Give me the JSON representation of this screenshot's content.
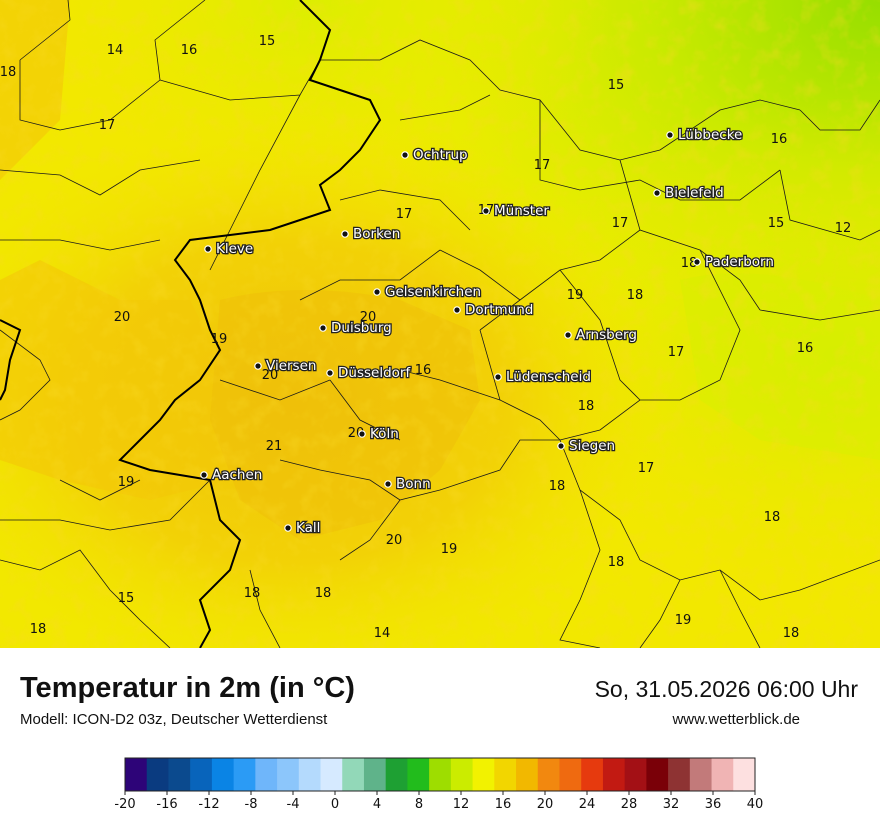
{
  "header": {
    "title": "Temperatur in 2m (in °C)",
    "model": "Modell: ICON-D2 03z, Deutscher Wetterdienst",
    "datetime": "So, 31.05.2026 06:00 Uhr",
    "website": "www.wetterblick.de"
  },
  "cities": [
    {
      "name": "Lübbecke"
    },
    {
      "name": "Ochtrup"
    },
    {
      "name": "Bielefeld"
    },
    {
      "name": "Münster"
    },
    {
      "name": "Borken"
    },
    {
      "name": "Kleve"
    },
    {
      "name": "Paderborn"
    },
    {
      "name": "Gelsenkirchen"
    },
    {
      "name": "Dortmund"
    },
    {
      "name": "Duisburg"
    },
    {
      "name": "Arnsberg"
    },
    {
      "name": "Viersen"
    },
    {
      "name": "Düsseldorf"
    },
    {
      "name": "Lüdenscheid"
    },
    {
      "name": "Köln"
    },
    {
      "name": "Siegen"
    },
    {
      "name": "Aachen"
    },
    {
      "name": "Bonn"
    },
    {
      "name": "Kall"
    }
  ],
  "temperature_labels": [
    "14",
    "16",
    "15",
    "18",
    "15",
    "17",
    "16",
    "17",
    "17",
    "17",
    "17",
    "15",
    "12",
    "18",
    "20",
    "19",
    "18",
    "20",
    "19",
    "17",
    "16",
    "20",
    "16",
    "20",
    "21",
    "18",
    "17",
    "19",
    "18",
    "18",
    "20",
    "19",
    "18",
    "15",
    "18",
    "18",
    "19",
    "18",
    "14",
    "18"
  ],
  "colors": {
    "map_base": "#f2e800",
    "warm": "#f3cf06",
    "warmer": "#f0c00a",
    "cool": "#d6ef00",
    "cooler": "#b8e600",
    "border": "#000000"
  },
  "legend": {
    "ticks": [
      "-20",
      "-16",
      "-12",
      "-8",
      "-4",
      "0",
      "4",
      "8",
      "12",
      "16",
      "20",
      "24",
      "28",
      "32",
      "36",
      "40"
    ],
    "colors": [
      "#2d0478",
      "#0a3b80",
      "#0b4a8e",
      "#0864bb",
      "#0a84e5",
      "#2b9bf5",
      "#6fb6fa",
      "#8cc6fb",
      "#b4dafd",
      "#d6eaff",
      "#92d8b8",
      "#5fb38a",
      "#1ea033",
      "#22bc1c",
      "#9edd00",
      "#cbec00",
      "#f2f200",
      "#f2d600",
      "#f2b800",
      "#f2880f",
      "#ef6a10",
      "#e63a0e",
      "#c21a12",
      "#a31015",
      "#7a0008",
      "#8e3333",
      "#c27a7a",
      "#f0b4b4",
      "#fde0e0"
    ]
  }
}
